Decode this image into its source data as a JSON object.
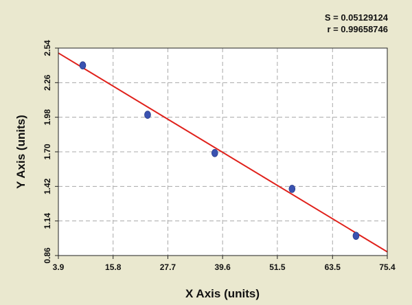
{
  "stats": {
    "s_label": "S = 0.05129124",
    "r_label": "r = 0.99658746"
  },
  "colors": {
    "background": "#eae8cf",
    "plot_area": "#ffffff",
    "grid": "#a8a8a8",
    "point": "#3a52b0",
    "fit_line": "#e0211b",
    "axis": "#222222"
  },
  "chart_data": {
    "type": "scatter",
    "title": "",
    "xlabel": "X Axis (units)",
    "ylabel": "Y Axis (units)",
    "xlim": [
      3.9,
      75.4
    ],
    "ylim": [
      0.86,
      2.54
    ],
    "x_ticks": [
      3.9,
      15.8,
      27.7,
      39.6,
      51.5,
      63.5,
      75.4
    ],
    "x_tick_labels": [
      "3.9",
      "15.8",
      "27.7",
      "39.6",
      "51.5",
      "63.5",
      "75.4"
    ],
    "y_ticks": [
      0.86,
      1.14,
      1.42,
      1.7,
      1.98,
      2.26,
      2.54
    ],
    "y_tick_labels": [
      "0.86",
      "1.14",
      "1.42",
      "1.70",
      "1.98",
      "2.26",
      "2.54"
    ],
    "grid": true,
    "series": [
      {
        "points": [
          {
            "x": 9.2,
            "y": 2.4
          },
          {
            "x": 23.3,
            "y": 2.0
          },
          {
            "x": 37.9,
            "y": 1.69
          },
          {
            "x": 54.7,
            "y": 1.4
          },
          {
            "x": 68.6,
            "y": 1.02
          }
        ]
      }
    ],
    "fit_line": {
      "type": "linear",
      "from": {
        "x": 3.9,
        "y": 2.5
      },
      "to": {
        "x": 75.4,
        "y": 0.89
      }
    }
  }
}
